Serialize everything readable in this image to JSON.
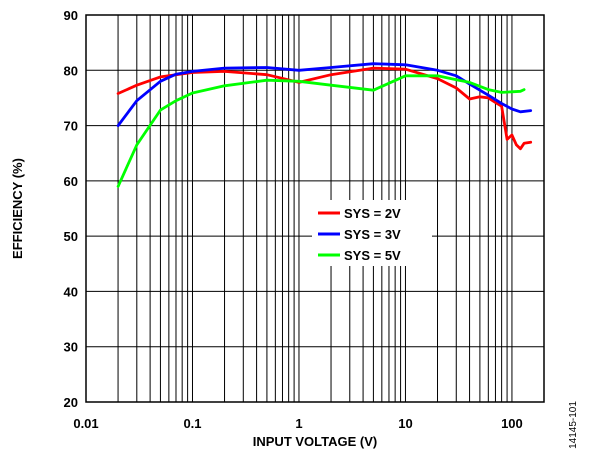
{
  "chart_data": {
    "type": "line",
    "xlabel": "INPUT VOLTAGE (V)",
    "ylabel": "EFFICIENCY (%)",
    "x_scale": "log",
    "xlim": [
      0.01,
      200
    ],
    "ylim": [
      20,
      90
    ],
    "x_ticks": [
      0.01,
      0.1,
      1,
      10,
      100
    ],
    "x_tick_labels": [
      "0.01",
      "0.1",
      "1",
      "10",
      "100"
    ],
    "y_ticks": [
      20,
      30,
      40,
      50,
      60,
      70,
      80,
      90
    ],
    "y_tick_labels": [
      "20",
      "30",
      "40",
      "50",
      "60",
      "70",
      "80",
      "90"
    ],
    "grid": true,
    "legend_position": "center",
    "figure_id": "14145-101",
    "series": [
      {
        "name": "SYS = 2V",
        "color": "#ff0000",
        "x": [
          0.02,
          0.03,
          0.05,
          0.1,
          0.2,
          0.5,
          1,
          2,
          5,
          10,
          20,
          30,
          40,
          50,
          60,
          70,
          80,
          90,
          100,
          110,
          120,
          130,
          150
        ],
        "y": [
          75.8,
          77.3,
          78.8,
          79.6,
          79.8,
          79.2,
          77.8,
          79.2,
          80.4,
          80.2,
          78.5,
          76.8,
          74.8,
          75.2,
          75.0,
          74.2,
          73.5,
          67.5,
          68.3,
          66.5,
          65.8,
          66.8,
          67.0
        ]
      },
      {
        "name": "SYS = 3V",
        "color": "#0000ff",
        "x": [
          0.02,
          0.03,
          0.05,
          0.07,
          0.1,
          0.2,
          0.5,
          1,
          2,
          5,
          10,
          20,
          30,
          40,
          60,
          80,
          100,
          120,
          150
        ],
        "y": [
          70.0,
          74.5,
          78.0,
          79.3,
          79.8,
          80.4,
          80.5,
          80.0,
          80.5,
          81.2,
          81.0,
          80.0,
          79.0,
          77.5,
          75.5,
          74.0,
          73.0,
          72.5,
          72.7
        ]
      },
      {
        "name": "SYS = 5V",
        "color": "#00ff00",
        "x": [
          0.02,
          0.03,
          0.05,
          0.07,
          0.1,
          0.2,
          0.5,
          1,
          2,
          5,
          10,
          20,
          30,
          40,
          60,
          80,
          100,
          120,
          130
        ],
        "y": [
          59.0,
          66.5,
          72.8,
          74.5,
          75.9,
          77.2,
          78.2,
          78.0,
          77.3,
          76.4,
          79.0,
          79.0,
          78.3,
          77.8,
          76.5,
          76.0,
          76.1,
          76.2,
          76.5
        ]
      }
    ]
  }
}
